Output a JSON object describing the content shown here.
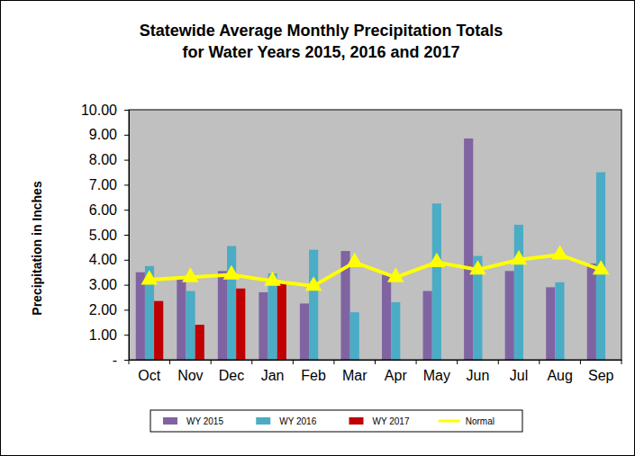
{
  "chart_data": {
    "type": "bar",
    "title": "Statewide Average Monthly Precipitation Totals\nfor Water Years 2015, 2016 and 2017",
    "y_label": "Precipitation in Inches",
    "categories": [
      "Oct",
      "Nov",
      "Dec",
      "Jan",
      "Feb",
      "Mar",
      "Apr",
      "May",
      "Jun",
      "Jul",
      "Aug",
      "Sep"
    ],
    "series": [
      {
        "name": "WY 2015",
        "color": "#8064a2",
        "type": "bar",
        "values": [
          3.5,
          3.25,
          3.55,
          2.7,
          2.25,
          4.35,
          3.4,
          2.75,
          8.85,
          3.55,
          2.9,
          3.85
        ]
      },
      {
        "name": "WY 2016",
        "color": "#4bacc6",
        "type": "bar",
        "values": [
          3.75,
          2.75,
          4.55,
          3.45,
          4.4,
          1.9,
          2.3,
          6.25,
          4.15,
          5.4,
          3.1,
          7.5
        ]
      },
      {
        "name": "WY 2017",
        "color": "#c00000",
        "type": "bar",
        "values": [
          2.35,
          1.4,
          2.85,
          3.15,
          null,
          null,
          null,
          null,
          null,
          null,
          null,
          null
        ]
      },
      {
        "name": "Normal",
        "color": "#ffff00",
        "type": "line",
        "marker": "triangle",
        "values": [
          3.2,
          3.3,
          3.4,
          3.15,
          2.95,
          3.9,
          3.3,
          3.9,
          3.6,
          4.0,
          4.2,
          3.6
        ]
      }
    ],
    "ylim": [
      0,
      10
    ],
    "yticks": [
      {
        "value": 0,
        "label": "-"
      },
      {
        "value": 1,
        "label": "1.00"
      },
      {
        "value": 2,
        "label": "2.00"
      },
      {
        "value": 3,
        "label": "3.00"
      },
      {
        "value": 4,
        "label": "4.00"
      },
      {
        "value": 5,
        "label": "5.00"
      },
      {
        "value": 6,
        "label": "6.00"
      },
      {
        "value": 7,
        "label": "7.00"
      },
      {
        "value": 8,
        "label": "8.00"
      },
      {
        "value": 9,
        "label": "9.00"
      },
      {
        "value": 10,
        "label": "10.00"
      }
    ],
    "grid": false,
    "legend": "bottom"
  }
}
